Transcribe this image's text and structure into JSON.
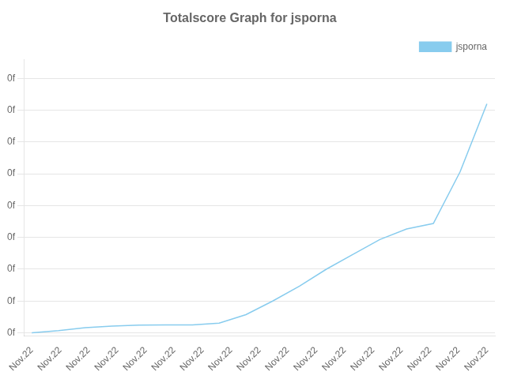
{
  "chart_data": {
    "type": "line",
    "title": "Totalscore Graph for jsporna",
    "x": [
      0,
      1,
      2,
      3,
      4,
      5,
      6,
      7,
      8,
      9,
      10,
      11,
      12,
      13,
      14,
      15,
      16,
      17
    ],
    "series": [
      {
        "name": "jsporna",
        "color": "#88ccee",
        "marker": "none",
        "values": [
          0,
          50,
          120,
          160,
          180,
          185,
          185,
          230,
          430,
          750,
          1100,
          1500,
          1850,
          2200,
          2450,
          2580,
          3800,
          5400
        ]
      }
    ],
    "xlim": [
      -0.3,
      17.3
    ],
    "xticks": [
      {
        "value": 0,
        "label": "Nov.22"
      },
      {
        "value": 1.0625,
        "label": "Nov.22"
      },
      {
        "value": 2.125,
        "label": "Nov.22"
      },
      {
        "value": 3.1875,
        "label": "Nov.22"
      },
      {
        "value": 4.25,
        "label": "Nov.22"
      },
      {
        "value": 5.3125,
        "label": "Nov.22"
      },
      {
        "value": 6.375,
        "label": "Nov.22"
      },
      {
        "value": 7.4375,
        "label": "Nov.22"
      },
      {
        "value": 8.5,
        "label": "Nov.22"
      },
      {
        "value": 9.5625,
        "label": "Nov.22"
      },
      {
        "value": 10.625,
        "label": "Nov.22"
      },
      {
        "value": 11.6875,
        "label": "Nov.22"
      },
      {
        "value": 12.75,
        "label": "Nov.22"
      },
      {
        "value": 13.8125,
        "label": "Nov.22"
      },
      {
        "value": 14.875,
        "label": "Nov.22"
      },
      {
        "value": 15.9375,
        "label": "Nov.22"
      },
      {
        "value": 17,
        "label": "Nov.22"
      }
    ],
    "ylim": [
      -75,
      6450
    ],
    "yticks": [
      {
        "value": 0,
        "label": "0f"
      },
      {
        "value": 750,
        "label": "0f"
      },
      {
        "value": 1500,
        "label": "0f"
      },
      {
        "value": 2250,
        "label": "0f"
      },
      {
        "value": 3000,
        "label": "0f"
      },
      {
        "value": 3750,
        "label": "0f"
      },
      {
        "value": 4500,
        "label": "0f"
      },
      {
        "value": 5250,
        "label": "0f"
      },
      {
        "value": 6000,
        "label": "0f"
      }
    ],
    "grid": true,
    "legend": "upper right"
  }
}
